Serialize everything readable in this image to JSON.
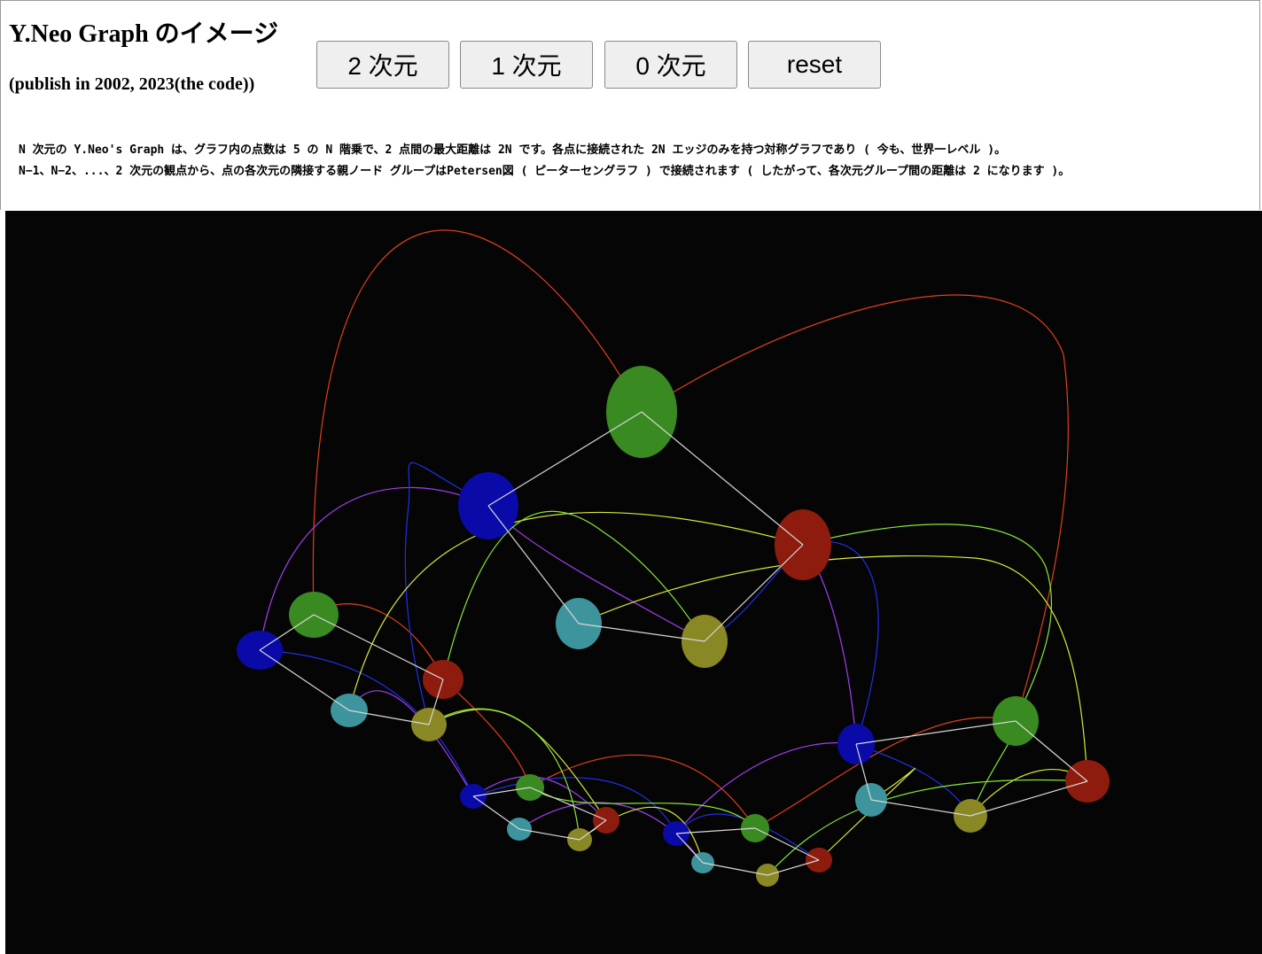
{
  "header": {
    "title": "Y.Neo Graph のイメージ",
    "subtitle": "(publish in 2002, 2023(the code))"
  },
  "buttons": {
    "dim2": "2 次元",
    "dim1": "1 次元",
    "dim0": "0 次元",
    "reset": "reset"
  },
  "description": {
    "line1": "N 次元の Y.Neo's Graph は、グラフ内の点数は 5 の N 階乗で、2 点間の最大距離は 2N です。各点に接続された 2N エッジのみを持つ対称グラフであり ( 今も、世界一レベル )。",
    "line2": "N−1、N−2、...、2 次元の観点から、点の各次元の隣接する親ノード グループはPetersen図 ( ピーターセングラフ ) で接続されます ( したがって、各次元グループ間の距離は 2 になります )。"
  },
  "colors": {
    "green": "#3a8a22",
    "blue": "#0a0aa8",
    "red": "#8e1c0e",
    "cyan": "#3e949c",
    "olive": "#8a8824",
    "edge_white": "#d8d8d8",
    "arc_red": "#e0401c",
    "arc_purple": "#a040f0",
    "arc_blue": "#2030e8",
    "arc_yellow": "#d8e838",
    "arc_lime": "#88e838",
    "canvas_bg": "#050505"
  }
}
